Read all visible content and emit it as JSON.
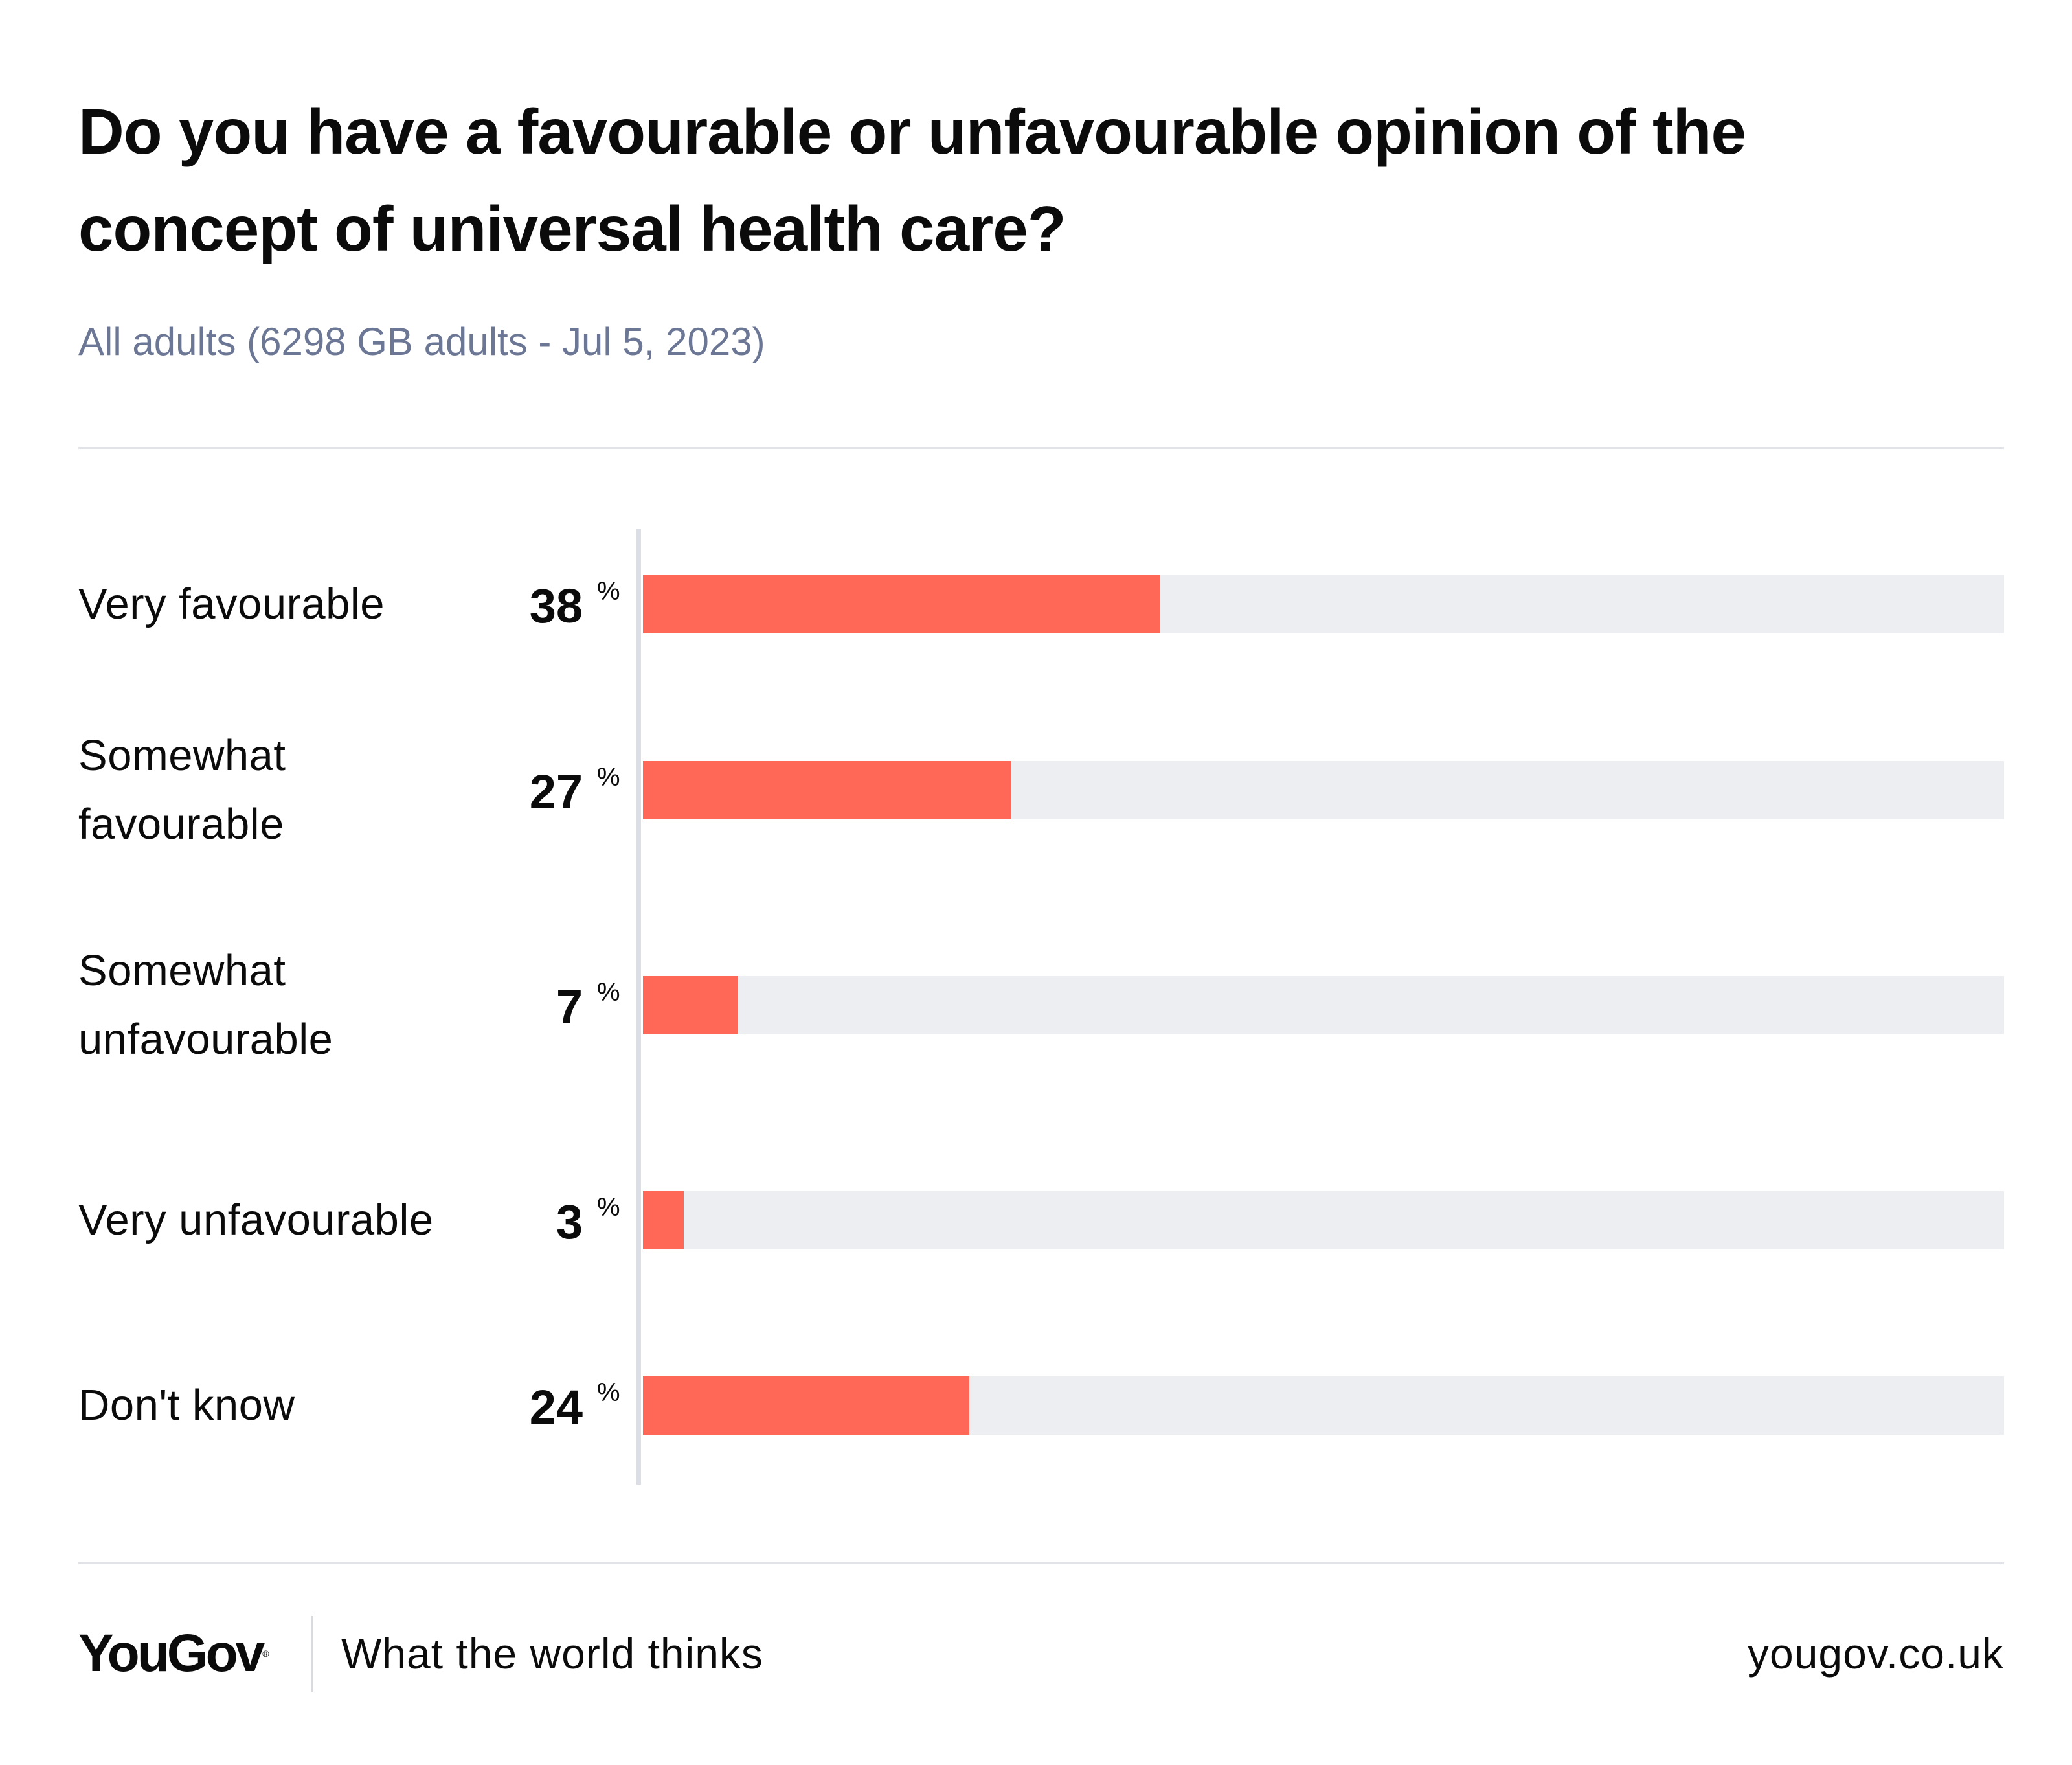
{
  "header": {
    "title": "Do you have a favourable or unfavourable opinion of the concept of universal health care?",
    "subtitle": "All adults (6298 GB adults - Jul 5, 2023)"
  },
  "chart_data": {
    "type": "bar",
    "orientation": "horizontal",
    "categories": [
      "Very favourable",
      "Somewhat favourable",
      "Somewhat unfavourable",
      "Very unfavourable",
      "Don't know"
    ],
    "values": [
      38,
      27,
      7,
      3,
      24
    ],
    "value_suffix": "%",
    "xlim": [
      0,
      100
    ],
    "grid": false,
    "colors": {
      "bar": "#ff6757",
      "track": "#edeef2"
    }
  },
  "footer": {
    "brand": "YouGov",
    "tagline": "What the world thinks",
    "url": "yougov.co.uk"
  }
}
